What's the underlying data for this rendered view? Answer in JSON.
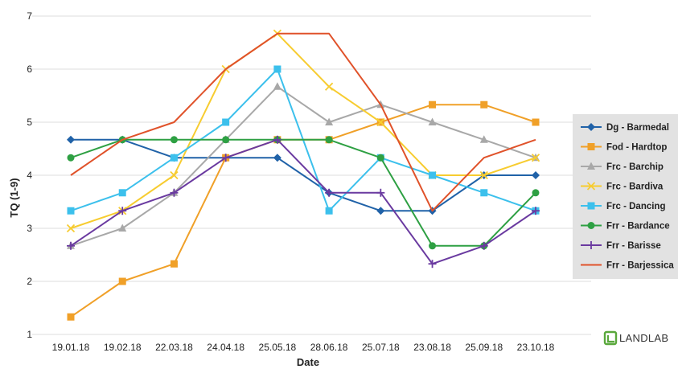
{
  "chart_data": {
    "type": "line",
    "xlabel": "Date",
    "ylabel": "TQ (1-9)",
    "ylim": [
      1,
      7
    ],
    "yticks": [
      1,
      2,
      3,
      4,
      5,
      6,
      7
    ],
    "grid": true,
    "legend_position": "right",
    "categories": [
      "19.01.18",
      "19.02.18",
      "22.03.18",
      "24.04.18",
      "25.05.18",
      "28.06.18",
      "25.07.18",
      "23.08.18",
      "25.09.18",
      "23.10.18"
    ],
    "series": [
      {
        "name": "Dg - Barmedal",
        "color": "#2062a8",
        "marker": "diamond",
        "values": [
          4.67,
          4.67,
          4.33,
          4.33,
          4.33,
          3.67,
          3.33,
          3.33,
          4.0,
          4.0
        ]
      },
      {
        "name": "Fod - Hardtop",
        "color": "#f0a028",
        "marker": "square",
        "values": [
          1.33,
          2.0,
          2.33,
          4.33,
          4.67,
          4.67,
          5.0,
          5.33,
          5.33,
          5.0
        ]
      },
      {
        "name": "Frc - Barchip",
        "color": "#a8a8a8",
        "marker": "triangle",
        "values": [
          2.67,
          3.0,
          3.67,
          4.67,
          5.67,
          5.0,
          5.33,
          5.0,
          4.67,
          4.33
        ]
      },
      {
        "name": "Frc - Bardiva",
        "color": "#f7cc30",
        "marker": "x",
        "values": [
          3.0,
          3.33,
          4.0,
          6.0,
          6.67,
          5.67,
          5.0,
          4.0,
          4.0,
          4.33
        ]
      },
      {
        "name": "Frc - Dancing",
        "color": "#3cc0ec",
        "marker": "square",
        "values": [
          3.33,
          3.67,
          4.33,
          5.0,
          6.0,
          3.33,
          4.33,
          4.0,
          3.67,
          3.33
        ]
      },
      {
        "name": "Frr - Bardance",
        "color": "#2ea043",
        "marker": "circle",
        "values": [
          4.33,
          4.67,
          4.67,
          4.67,
          4.67,
          4.67,
          4.33,
          2.67,
          2.67,
          3.67
        ]
      },
      {
        "name": "Frr - Barisse",
        "color": "#6a3aa0",
        "marker": "plus",
        "values": [
          2.67,
          3.33,
          3.67,
          4.33,
          4.67,
          3.67,
          3.67,
          2.33,
          2.67,
          3.33
        ]
      },
      {
        "name": "Frr - Barjessica",
        "color": "#e0522a",
        "marker": "none",
        "values": [
          4.0,
          4.67,
          5.0,
          6.0,
          6.67,
          6.67,
          5.33,
          3.33,
          4.33,
          4.67
        ]
      }
    ]
  },
  "logo": {
    "text": "LANDLAB",
    "color": "#5aa83c"
  }
}
